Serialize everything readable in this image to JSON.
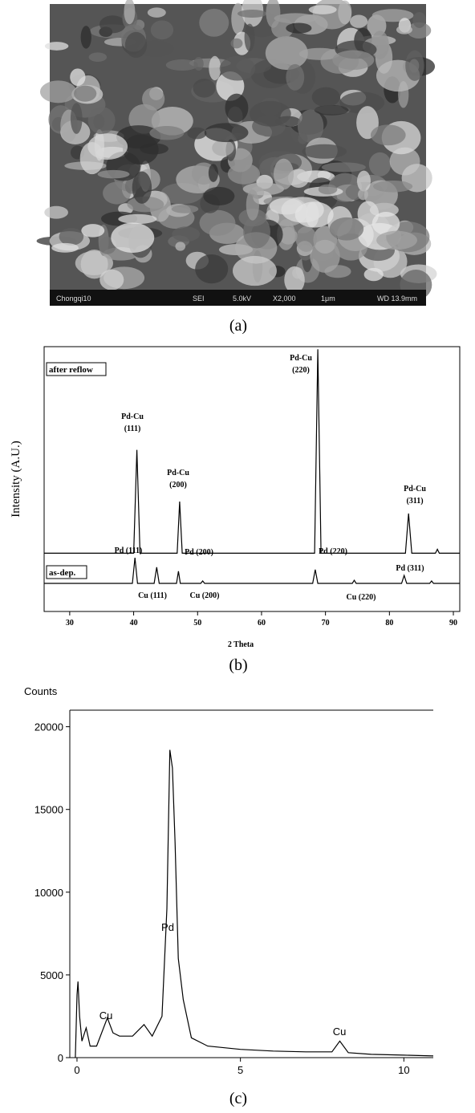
{
  "figure": {
    "image": {
      "info_bar": [
        "Chongqi10",
        "SEI",
        "5.0kV",
        "X2,000",
        "1μm",
        "WD 13.9mm"
      ]
    },
    "captions": [
      "(a)",
      "(b)",
      "(c)"
    ]
  },
  "chart_data": [
    {
      "type": "line",
      "xlabel": "2 Theta",
      "ylabel": "Intensity (A.U.)",
      "xlim": [
        26,
        91
      ],
      "ylim": [
        0,
        100
      ],
      "xticks": [
        30,
        40,
        50,
        60,
        70,
        80,
        90
      ],
      "color": "#000000",
      "series": [
        {
          "name": "after reflow",
          "color": "#000000",
          "x": [
            26,
            40.0,
            40.5,
            41.0,
            46.8,
            47.2,
            47.6,
            68.3,
            68.8,
            69.3,
            82.5,
            83.0,
            83.5,
            87.2,
            87.5,
            87.8,
            91
          ],
          "values": [
            22,
            22,
            61,
            22,
            22,
            41.5,
            22,
            22,
            99,
            22,
            22,
            37,
            22,
            22,
            23.5,
            22,
            22
          ]
        },
        {
          "name": "as-dep.",
          "color": "#000000",
          "x": [
            26,
            39.8,
            40.2,
            40.6,
            43.2,
            43.6,
            44.0,
            46.7,
            47.0,
            47.3,
            50.5,
            50.8,
            51.1,
            68.0,
            68.4,
            68.8,
            74.2,
            74.5,
            74.8,
            81.9,
            82.3,
            82.7,
            86.3,
            86.6,
            86.9,
            91
          ],
          "values": [
            10.6,
            10.6,
            20.3,
            10.6,
            10.6,
            16.7,
            10.6,
            10.6,
            15.2,
            10.6,
            10.6,
            11.5,
            10.6,
            10.6,
            15.8,
            10.6,
            10.6,
            11.8,
            10.6,
            10.6,
            13.6,
            10.6,
            10.6,
            11.5,
            10.6,
            10.6
          ]
        }
      ],
      "annotations": [
        [
          "Pd-Cu",
          "(111)"
        ],
        [
          "Pd-Cu",
          "(200)"
        ],
        [
          "Pd-Cu",
          "(220)"
        ],
        [
          "Pd-Cu",
          "(311)"
        ],
        [
          "Pd (111)"
        ],
        [
          "Cu (111)"
        ],
        [
          "Pd (200)"
        ],
        [
          "Cu (200)"
        ],
        [
          "Pd (220)"
        ],
        [
          "Cu (220)"
        ],
        [
          "Pd (311)"
        ]
      ]
    },
    {
      "type": "line",
      "ylabel": "Counts",
      "xlim": [
        -0.22,
        10.9
      ],
      "ylim": [
        0,
        21000
      ],
      "xticks": [
        0,
        5,
        10
      ],
      "yticks": [
        0,
        5000,
        10000,
        15000,
        20000
      ],
      "series": [
        {
          "color": "#000000",
          "x": [
            -0.05,
            0.0,
            0.03,
            0.08,
            0.15,
            0.28,
            0.4,
            0.6,
            0.93,
            1.1,
            1.3,
            1.7,
            2.05,
            2.3,
            2.6,
            2.75,
            2.84,
            2.92,
            3.0,
            3.1,
            3.25,
            3.5,
            4,
            5,
            6,
            7,
            7.8,
            8.04,
            8.3,
            9,
            10,
            10.9
          ],
          "values": [
            0,
            3800,
            4600,
            2500,
            1000,
            1800,
            700,
            700,
            2400,
            1500,
            1300,
            1300,
            2000,
            1300,
            2500,
            9000,
            18600,
            17500,
            13000,
            6000,
            3500,
            1200,
            700,
            500,
            400,
            350,
            350,
            1000,
            300,
            200,
            150,
            100
          ]
        }
      ],
      "annotations": [
        "Pd",
        "Cu",
        "Cu"
      ]
    }
  ]
}
